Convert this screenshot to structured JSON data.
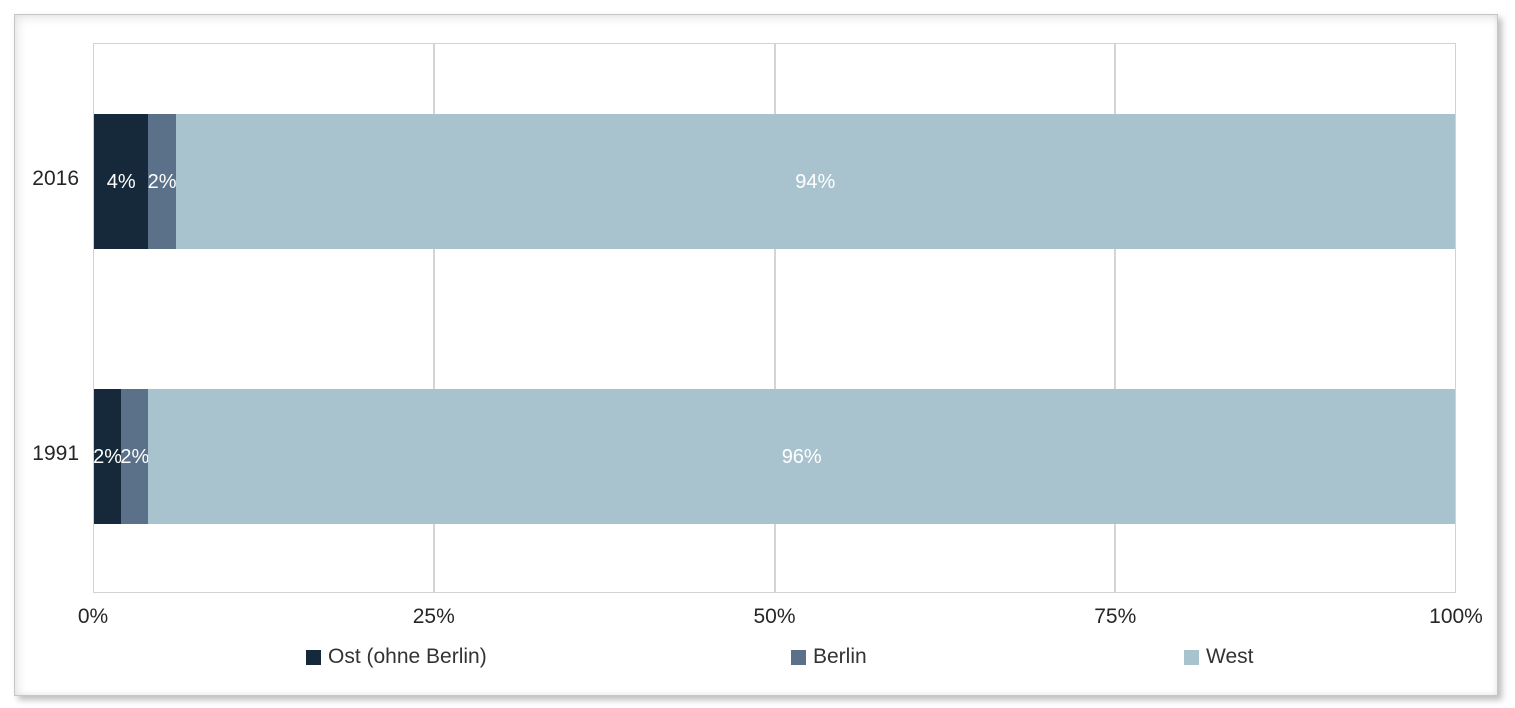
{
  "chart_data": {
    "type": "bar",
    "orientation": "horizontal",
    "stacked": true,
    "title": "",
    "xlabel": "",
    "ylabel": "",
    "categories": [
      "2016",
      "1991"
    ],
    "series": [
      {
        "name": "Ost (ohne Berlin)",
        "color": "#16293a",
        "values": [
          4,
          2
        ],
        "labels": [
          "4%",
          "2%"
        ]
      },
      {
        "name": "Berlin",
        "color": "#5b7189",
        "values": [
          2,
          2
        ],
        "labels": [
          "2%",
          "2%"
        ]
      },
      {
        "name": "West",
        "color": "#a9c3ce",
        "values": [
          94,
          96
        ],
        "labels": [
          "94%",
          "96%"
        ]
      }
    ],
    "x_ticks": [
      "0%",
      "25%",
      "50%",
      "75%",
      "100%"
    ],
    "x_tick_values": [
      0,
      25,
      50,
      75,
      100
    ],
    "xlim": [
      0,
      100
    ],
    "grid": "vertical-only",
    "gridline_color": "#d4d4d4",
    "legend_position": "bottom",
    "data_label_color": "#ffffff",
    "axis_text_color": "#262626"
  }
}
